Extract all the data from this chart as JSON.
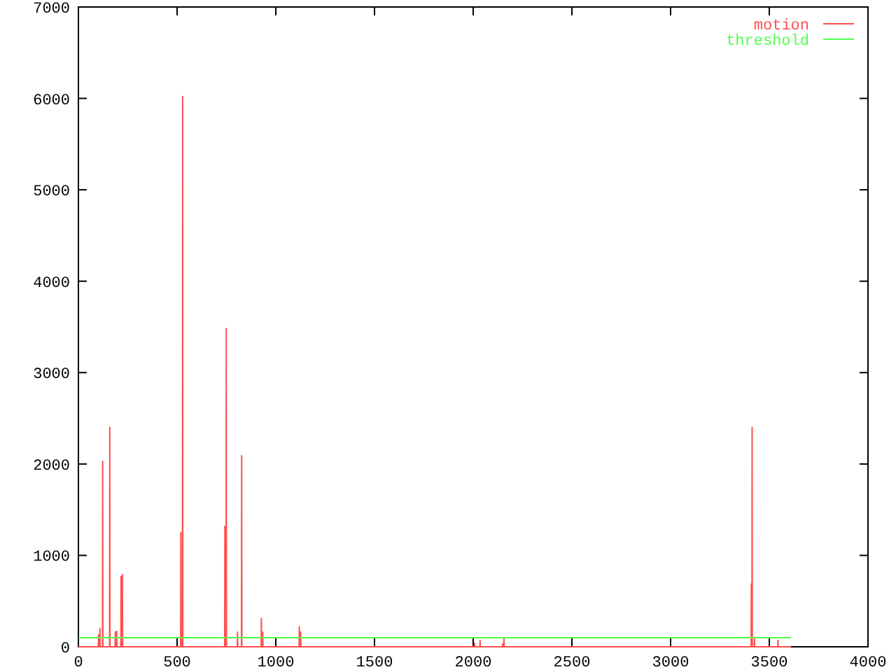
{
  "chart_data": {
    "type": "line",
    "series": [
      {
        "name": "motion",
        "color": "#ff5050",
        "x": [
          0,
          101,
          102,
          103,
          108,
          109,
          110,
          122,
          123,
          124,
          158,
          159,
          160,
          186,
          187,
          188,
          193,
          194,
          195,
          215,
          216,
          217,
          222,
          223,
          224,
          518,
          519,
          520,
          527,
          528,
          529,
          741,
          742,
          743,
          748,
          749,
          750,
          805,
          806,
          807,
          826,
          827,
          828,
          926,
          927,
          928,
          933,
          934,
          935,
          1118,
          1119,
          1120,
          1125,
          1126,
          1127,
          2006,
          2007,
          2008,
          2034,
          2035,
          2036,
          2148,
          2149,
          2150,
          2155,
          2156,
          2157,
          3408,
          3409,
          3410,
          3412,
          3413,
          3414,
          3424,
          3425,
          3426,
          3543,
          3544,
          3545,
          3610
        ],
        "values": [
          0,
          0,
          130,
          0,
          0,
          200,
          0,
          0,
          2030,
          0,
          0,
          2400,
          0,
          0,
          160,
          0,
          0,
          170,
          0,
          0,
          770,
          0,
          0,
          790,
          0,
          0,
          1250,
          0,
          0,
          6020,
          0,
          0,
          1320,
          0,
          0,
          3480,
          0,
          0,
          160,
          0,
          0,
          2090,
          0,
          0,
          310,
          0,
          0,
          160,
          0,
          0,
          220,
          0,
          0,
          160,
          0,
          0,
          40,
          0,
          0,
          70,
          0,
          0,
          30,
          0,
          0,
          100,
          0,
          0,
          690,
          0,
          0,
          2400,
          0,
          0,
          90,
          0,
          0,
          70,
          0,
          0
        ]
      },
      {
        "name": "threshold",
        "color": "#50ff50",
        "x": [
          0,
          3610
        ],
        "values": [
          100,
          100
        ]
      }
    ],
    "xlim": [
      0,
      4000
    ],
    "xticks": [
      0,
      500,
      1000,
      1500,
      2000,
      2500,
      3000,
      3500,
      4000
    ],
    "ylim": [
      0,
      7000
    ],
    "yticks": [
      0,
      1000,
      2000,
      3000,
      4000,
      5000,
      6000,
      7000
    ],
    "legend": "top right"
  }
}
